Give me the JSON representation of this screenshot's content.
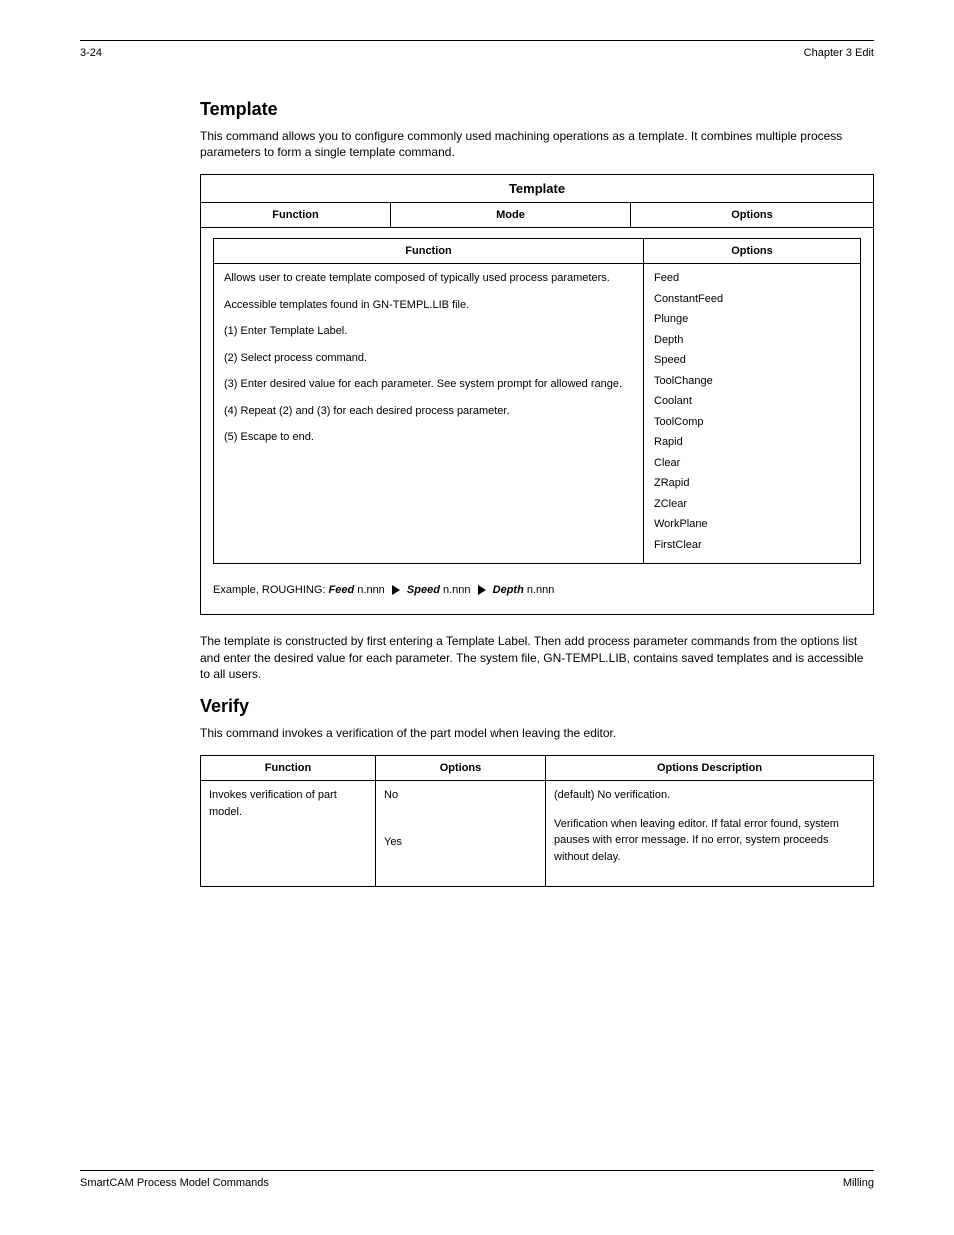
{
  "header": {
    "left": "3-24",
    "right": "Chapter 3   Edit"
  },
  "heading1": "Template",
  "intro1": "This command allows you to configure commonly used machining operations as a template. It combines multiple process parameters to form a single template command.",
  "table1": {
    "title": "Template",
    "header": [
      "Function",
      "Mode",
      "Options"
    ],
    "inner": {
      "header_left": "Function",
      "header_right": "Options",
      "left_lines": [
        "Allows user to create template composed of typically used process parameters.",
        "Accessible templates found in GN-TEMPL.LIB file.",
        "(1)  Enter Template Label.",
        "(2)  Select process command.",
        "(3)  Enter desired value for each parameter. See system prompt for allowed range.",
        "(4)  Repeat (2) and (3) for each desired process parameter.",
        "(5)  Escape to end."
      ],
      "right_lines": [
        "Feed",
        "ConstantFeed",
        "Plunge",
        "Depth",
        "Speed",
        "ToolChange",
        "Coolant",
        "ToolComp",
        "Rapid",
        "Clear",
        "ZRapid",
        "ZClear",
        "WorkPlane",
        "FirstClear"
      ]
    },
    "example_prefix": "Example, ROUGHING: ",
    "example_items": [
      "Feed",
      "Speed",
      "Depth"
    ]
  },
  "para2": "The template is constructed by first entering a Template Label. Then add process parameter commands from the options list and enter the desired value for each parameter. The system file, GN-TEMPL.LIB, contains saved templates and is accessible to all users.",
  "heading2": "Verify",
  "intro2": "This command invokes a verification of the part model when leaving the editor.",
  "table2": {
    "header": [
      "Function",
      "Options",
      "Options Description"
    ],
    "rows": [
      [
        "Invokes verification of part model.",
        [
          "No",
          "Yes"
        ],
        [
          "(default) No verification.",
          "Verification when leaving editor. If fatal error found, system pauses with error message. If no error, system proceeds without delay."
        ]
      ]
    ]
  },
  "footer": {
    "left": "SmartCAM Process Model Commands",
    "right": "Milling"
  }
}
